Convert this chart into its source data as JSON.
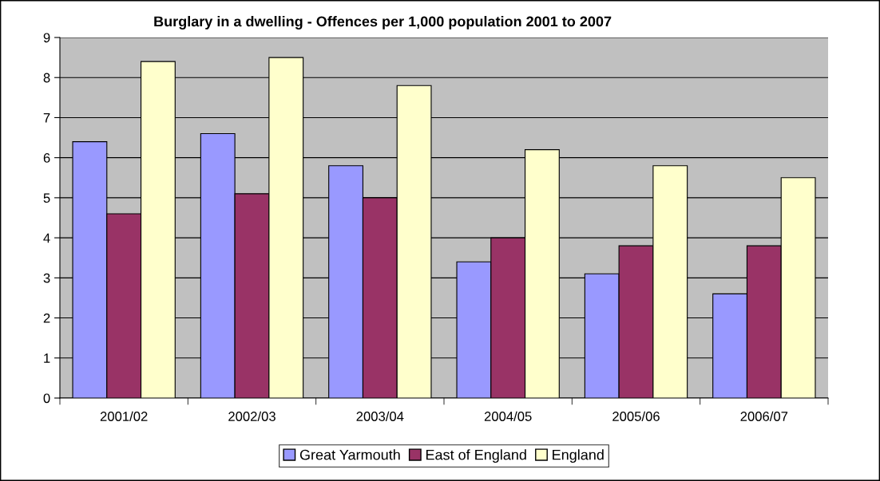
{
  "chart_data": {
    "type": "bar",
    "title": "Burglary in a dwelling - Offences per 1,000 population 2001 to 2007",
    "categories": [
      "2001/02",
      "2002/03",
      "2003/04",
      "2004/05",
      "2005/06",
      "2006/07"
    ],
    "series": [
      {
        "name": "Great Yarmouth",
        "color": "#9999ff",
        "values": [
          6.4,
          6.6,
          5.8,
          3.4,
          3.1,
          2.6
        ]
      },
      {
        "name": "East of England",
        "color": "#993366",
        "values": [
          4.6,
          5.1,
          5.0,
          4.0,
          3.8,
          3.8
        ]
      },
      {
        "name": "England",
        "color": "#ffffcc",
        "values": [
          8.4,
          8.5,
          7.8,
          6.2,
          5.8,
          5.5
        ]
      }
    ],
    "ylim": [
      0,
      9
    ],
    "yticks": [
      0,
      1,
      2,
      3,
      4,
      5,
      6,
      7,
      8,
      9
    ],
    "grid": "y",
    "legend": "bottom"
  }
}
